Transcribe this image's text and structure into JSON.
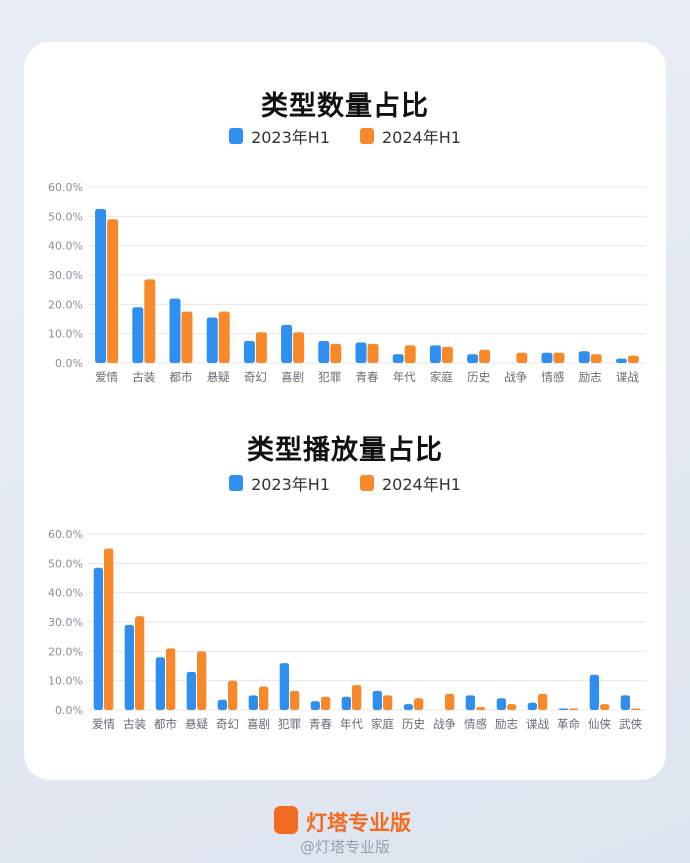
{
  "colors": {
    "series_a": "#2f8ff0",
    "series_b": "#f7892a",
    "grid": "#e4e7ec",
    "logo": "#f26b22"
  },
  "footer": {
    "brand": "灯塔专业版",
    "weibo": "@灯塔专业版"
  },
  "chart_data": [
    {
      "type": "bar",
      "title": "类型数量占比",
      "legend_placement": "top-center",
      "grid": true,
      "ylim": [
        0,
        60
      ],
      "yticks": [
        "0.0%",
        "10.0%",
        "20.0%",
        "30.0%",
        "40.0%",
        "50.0%",
        "60.0%"
      ],
      "categories": [
        "爱情",
        "古装",
        "都市",
        "悬疑",
        "奇幻",
        "喜剧",
        "犯罪",
        "青春",
        "年代",
        "家庭",
        "历史",
        "战争",
        "情感",
        "励志",
        "谍战"
      ],
      "series": [
        {
          "name": "2023年H1",
          "values": [
            52.5,
            19.0,
            22.0,
            15.5,
            7.5,
            13.0,
            7.5,
            7.0,
            3.0,
            6.0,
            3.0,
            0,
            3.5,
            4.0,
            1.5
          ]
        },
        {
          "name": "2024年H1",
          "values": [
            49.0,
            28.5,
            17.5,
            17.5,
            10.5,
            10.5,
            6.5,
            6.5,
            6.0,
            5.5,
            4.5,
            3.5,
            3.5,
            3.0,
            2.5
          ]
        }
      ]
    },
    {
      "type": "bar",
      "title": "类型播放量占比",
      "legend_placement": "top-center",
      "grid": true,
      "ylim": [
        0,
        60
      ],
      "yticks": [
        "0.0%",
        "10.0%",
        "20.0%",
        "30.0%",
        "40.0%",
        "50.0%",
        "60.0%"
      ],
      "categories": [
        "爱情",
        "古装",
        "都市",
        "悬疑",
        "奇幻",
        "喜剧",
        "犯罪",
        "青春",
        "年代",
        "家庭",
        "历史",
        "战争",
        "情感",
        "励志",
        "谍战",
        "革命",
        "仙侠",
        "武侠"
      ],
      "series": [
        {
          "name": "2023年H1",
          "values": [
            48.5,
            29.0,
            18.0,
            13.0,
            3.5,
            5.0,
            16.0,
            3.0,
            4.5,
            6.5,
            2.0,
            0,
            5.0,
            4.0,
            2.5,
            0.5,
            12.0,
            5.0
          ]
        },
        {
          "name": "2024年H1",
          "values": [
            55.0,
            32.0,
            21.0,
            20.0,
            10.0,
            8.0,
            6.5,
            4.5,
            8.5,
            5.0,
            4.0,
            5.5,
            1.0,
            2.0,
            5.5,
            0.5,
            2.0,
            0.5
          ]
        }
      ]
    }
  ]
}
